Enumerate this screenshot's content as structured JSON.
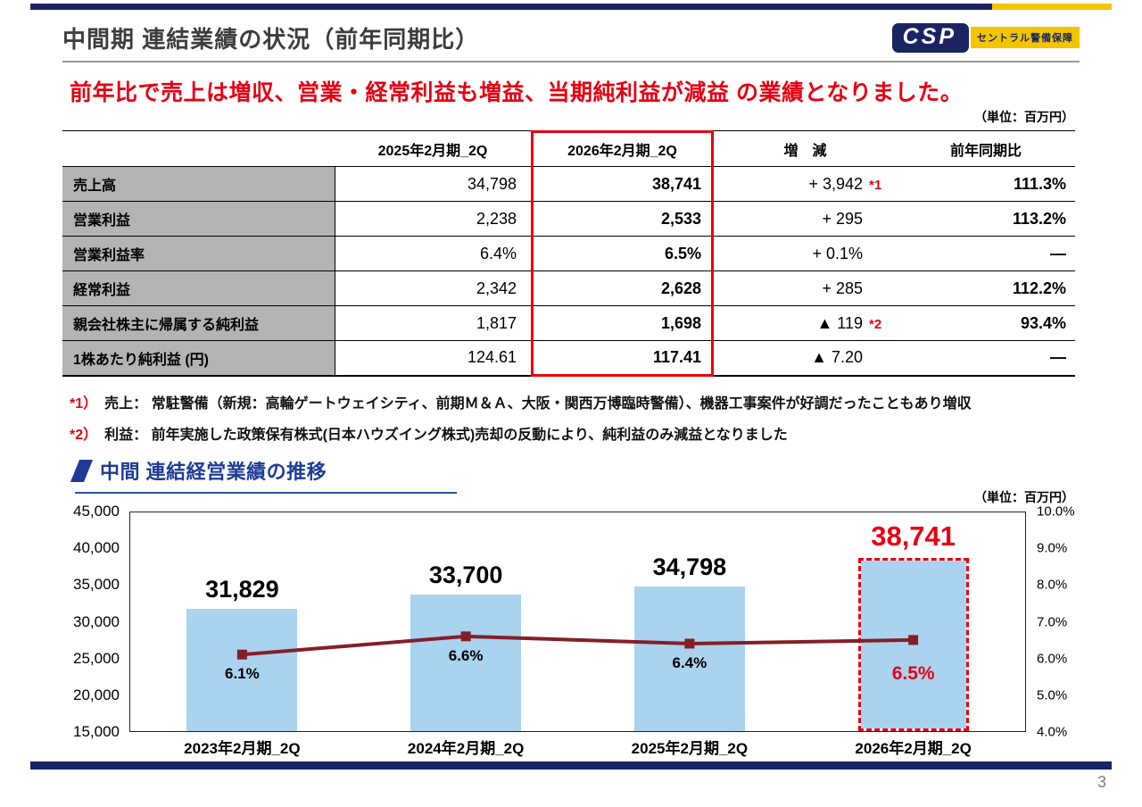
{
  "header": {
    "title": "中間期 連結業績の状況（前年同期比）",
    "logo": {
      "text": "CSP",
      "subtext": "セントラル警備保障"
    }
  },
  "headline": "前年比で売上は増収、営業・経常利益も増益、当期純利益が減益 の業績となりました。",
  "labels": {
    "table_unit": "（単位：百万円）",
    "chart_unit": "（単位：百万円）"
  },
  "colors": {
    "accent_navy": "#1b2463",
    "accent_yellow": "#f2c500",
    "headline_red": "#e60012",
    "row_label_gray": "#b3b3b3"
  },
  "table": {
    "columns": [
      "",
      "2025年2月期_2Q",
      "2026年2月期_2Q",
      "増　減",
      "前年同期比"
    ],
    "rows": [
      {
        "label": "売上高",
        "prev": "34,798",
        "curr": "38,741",
        "change": "+ 3,942",
        "note": "*1",
        "yoy": "111.3%"
      },
      {
        "label": "営業利益",
        "prev": "2,238",
        "curr": "2,533",
        "change": "+ 295",
        "note": "",
        "yoy": "113.2%"
      },
      {
        "label": "営業利益率",
        "prev": "6.4%",
        "curr": "6.5%",
        "change": "+ 0.1%",
        "note": "",
        "yoy": "―"
      },
      {
        "label": "経常利益",
        "prev": "2,342",
        "curr": "2,628",
        "change": "+ 285",
        "note": "",
        "yoy": "112.2%"
      },
      {
        "label": "親会社株主に帰属する純利益",
        "prev": "1,817",
        "curr": "1,698",
        "change": "▲ 119",
        "note": "*2",
        "yoy": "93.4%"
      },
      {
        "label": "1株あたり純利益 (円)",
        "prev": "124.61",
        "curr": "117.41",
        "change": "▲ 7.20",
        "note": "",
        "yoy": "―"
      }
    ]
  },
  "footnotes": [
    {
      "marker": "*1）",
      "text": "売上： 常駐警備（新規：高輪ゲートウェイシティ、前期Ｍ＆Ａ、大阪・関西万博臨時警備）、機器工事案件が好調だったこともあり増収"
    },
    {
      "marker": "*2）",
      "text": "利益： 前年実施した政策保有株式(日本ハウズイング株式)売却の反動により、純利益のみ減益となりました"
    }
  ],
  "chart_data": {
    "type": "bar+line",
    "title": "中間 連結経営業績の推移",
    "unit": "百万円",
    "categories": [
      "2023年2月期_2Q",
      "2024年2月期_2Q",
      "2025年2月期_2Q",
      "2026年2月期_2Q"
    ],
    "series": [
      {
        "name": "売上高",
        "type": "bar",
        "values": [
          31829,
          33700,
          34798,
          38741
        ],
        "labels": [
          "31,829",
          "33,700",
          "34,798",
          "38,741"
        ]
      },
      {
        "name": "営業利益率",
        "type": "line",
        "values": [
          6.1,
          6.6,
          6.4,
          6.5
        ],
        "labels": [
          "6.1%",
          "6.6%",
          "6.4%",
          "6.5%"
        ]
      }
    ],
    "left_axis": {
      "min": 15000,
      "max": 45000,
      "ticks": [
        "45,000",
        "40,000",
        "35,000",
        "30,000",
        "25,000",
        "20,000",
        "15,000"
      ]
    },
    "right_axis": {
      "min": 4.0,
      "max": 10.0,
      "ticks": [
        "10.0%",
        "9.0%",
        "8.0%",
        "7.0%",
        "6.0%",
        "5.0%",
        "4.0%"
      ]
    },
    "highlight_index": 3,
    "grid": false,
    "legend": "none",
    "colors": {
      "bar": "#aad3f0",
      "line": "#841f27",
      "highlight": "#e60012"
    }
  },
  "page": {
    "number": "3"
  }
}
